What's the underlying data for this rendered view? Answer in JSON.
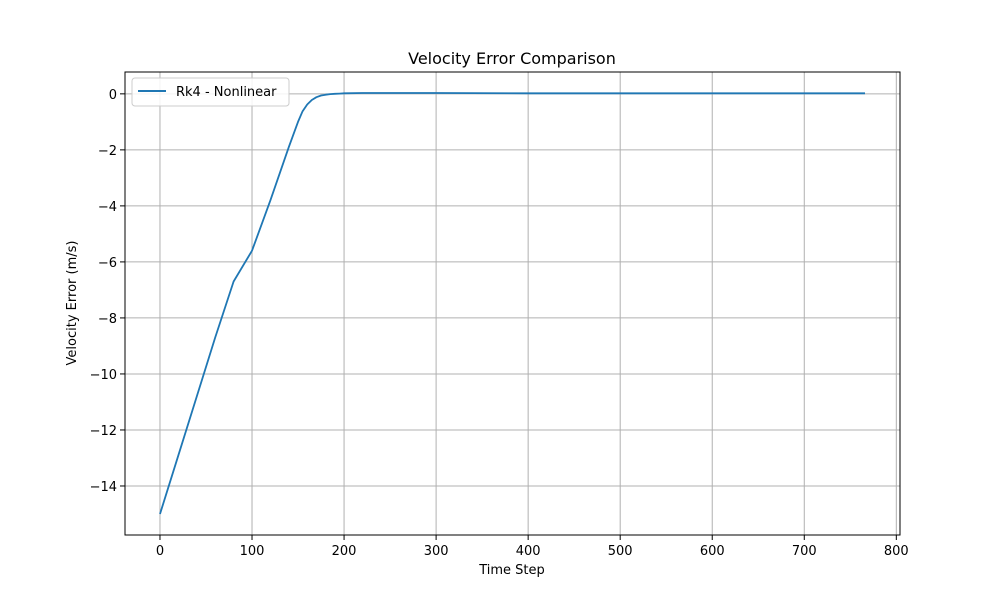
{
  "chart_data": {
    "type": "line",
    "title": "Velocity Error Comparison",
    "xlabel": "Time Step",
    "ylabel": "Velocity Error (m/s)",
    "xlim": [
      -38,
      804
    ],
    "ylim": [
      -15.75,
      0.78
    ],
    "xticks": [
      0,
      100,
      200,
      300,
      400,
      500,
      600,
      700,
      800
    ],
    "yticks": [
      -14,
      -12,
      -10,
      -8,
      -6,
      -4,
      -2,
      0
    ],
    "xtick_labels": [
      "0",
      "100",
      "200",
      "300",
      "400",
      "500",
      "600",
      "700",
      "800"
    ],
    "ytick_labels": [
      "−14",
      "−12",
      "−10",
      "−8",
      "−6",
      "−4",
      "−2",
      "0"
    ],
    "grid": true,
    "legend_position": "top-left",
    "series": [
      {
        "name": "Rk4 - Nonlinear",
        "color": "#1f77b4",
        "x": [
          0,
          20,
          40,
          60,
          80,
          100,
          120,
          140,
          150,
          155,
          160,
          165,
          170,
          175,
          180,
          185,
          190,
          195,
          200,
          220,
          250,
          300,
          400,
          500,
          600,
          700,
          766
        ],
        "y": [
          -15.0,
          -12.9,
          -10.8,
          -8.7,
          -6.7,
          -5.6,
          -3.8,
          -1.9,
          -1.0,
          -0.62,
          -0.38,
          -0.22,
          -0.12,
          -0.06,
          -0.03,
          -0.01,
          0.0,
          0.01,
          0.02,
          0.03,
          0.03,
          0.03,
          0.02,
          0.02,
          0.02,
          0.02,
          0.02
        ]
      }
    ]
  }
}
